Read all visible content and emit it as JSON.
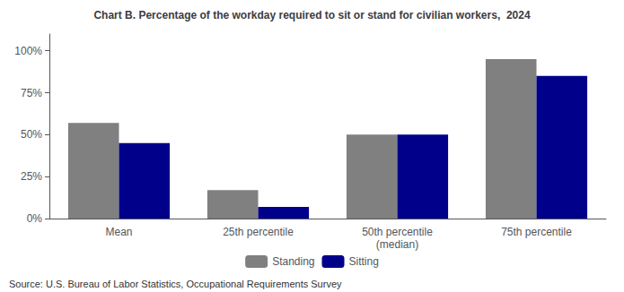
{
  "chart_data": {
    "type": "bar",
    "title": "Chart B. Percentage of the workday required to sit or stand for civilian workers,  2024",
    "categories": [
      "Mean",
      "25th percentile",
      "50th percentile\n(median)",
      "75th percentile"
    ],
    "series": [
      {
        "name": "Standing",
        "color": "#808080",
        "values": [
          57,
          17,
          50,
          95
        ]
      },
      {
        "name": "Sitting",
        "color": "#00008B",
        "values": [
          45,
          7,
          50,
          85
        ]
      }
    ],
    "ylim": [
      0,
      110
    ],
    "yticks": [
      {
        "value": 0,
        "label": "0%"
      },
      {
        "value": 25,
        "label": "25%"
      },
      {
        "value": 50,
        "label": "50%"
      },
      {
        "value": 75,
        "label": "75%"
      },
      {
        "value": 100,
        "label": "100%"
      }
    ],
    "grid": false,
    "legend": "bottom",
    "annotations": [
      "Source: U.S. Bureau of Labor Statistics, Occupational Requirements Survey"
    ]
  }
}
